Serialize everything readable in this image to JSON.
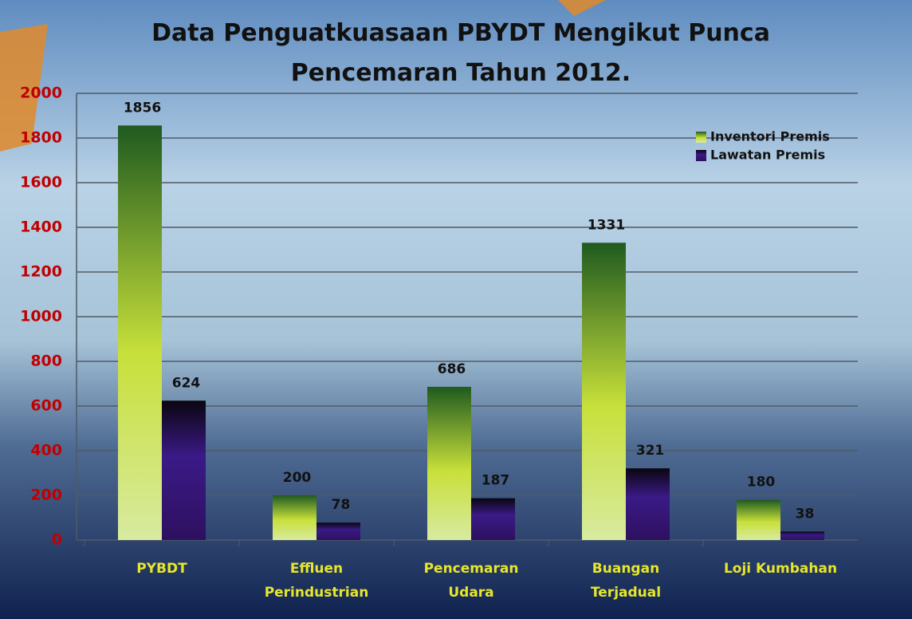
{
  "chart_data": {
    "type": "bar",
    "title": "Data Penguatkuasaan  PBYDT Mengikut Punca\nPencemaran Tahun 2012.",
    "categories": [
      "PYBDT",
      "Effluen\nPerindustrian",
      "Pencemaran\nUdara",
      "Buangan\nTerjadual",
      "Loji Kumbahan"
    ],
    "series": [
      {
        "name": "Inventori Premis",
        "color": "#c8e03a",
        "values": [
          1856,
          200,
          686,
          1331,
          180
        ]
      },
      {
        "name": "Lawatan Premis",
        "color": "#3a1a86",
        "values": [
          624,
          78,
          187,
          321,
          38
        ]
      }
    ],
    "ylim": [
      0,
      2000
    ],
    "yticks": [
      0,
      200,
      400,
      600,
      800,
      1000,
      1200,
      1400,
      1600,
      1800,
      2000
    ],
    "grid": true,
    "legend": "top-right"
  }
}
